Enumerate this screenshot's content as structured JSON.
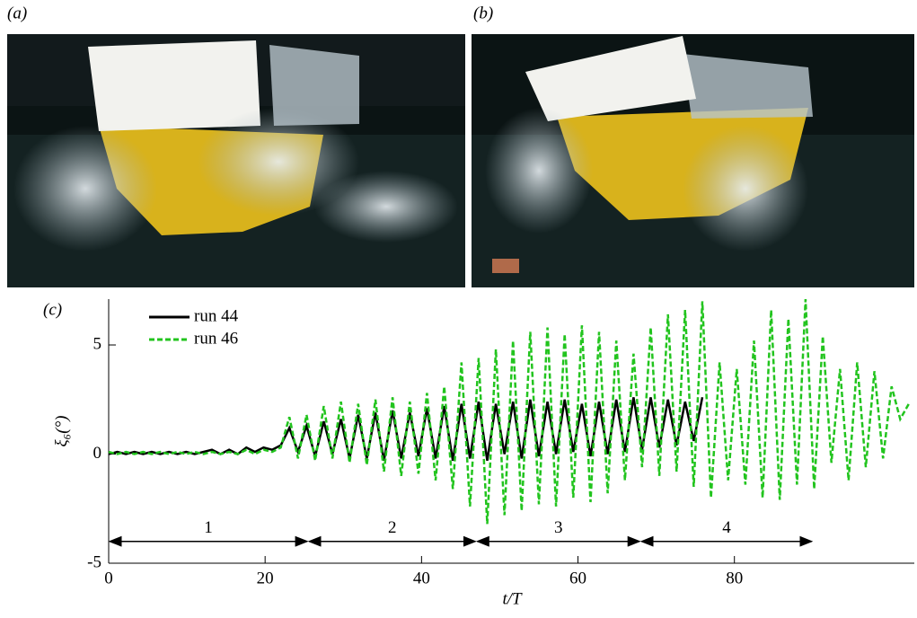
{
  "panels": [
    "(a)",
    "(b)"
  ],
  "chart_data": {
    "type": "line",
    "panel_label": "(c)",
    "x_label": "t/T",
    "y_label": "ξ₆(°)",
    "x": [
      0,
      1.1,
      2.2,
      3.3,
      4.4,
      5.5,
      6.6,
      7.7,
      8.8,
      9.9,
      11,
      12.1,
      13.2,
      14.3,
      15.4,
      16.5,
      17.6,
      18.7,
      19.8,
      20.9,
      22,
      23.1,
      24.2,
      25.3,
      26.4,
      27.5,
      28.6,
      29.7,
      30.8,
      31.9,
      33,
      34.1,
      35.2,
      36.3,
      37.4,
      38.5,
      39.6,
      40.7,
      41.8,
      42.9,
      44,
      45.1,
      46.2,
      47.3,
      48.4,
      49.5,
      50.6,
      51.7,
      52.8,
      53.9,
      55,
      56.1,
      57.2,
      58.3,
      59.4,
      60.5,
      61.6,
      62.7,
      63.8,
      64.9,
      66,
      67.1,
      68.2,
      69.3,
      70.4,
      71.5,
      72.6,
      73.7,
      74.8,
      75.9,
      77,
      78.1,
      79.2,
      80.3,
      81.4,
      82.5,
      83.6,
      84.7,
      85.8,
      86.9,
      88,
      89.1,
      90.2,
      91.3,
      92.4,
      93.5,
      94.6,
      95.7,
      96.8,
      97.9,
      99,
      100.1,
      101.2,
      102.3
    ],
    "series": [
      {
        "name": "run 44",
        "color": "#000000",
        "style": "solid",
        "values": [
          0,
          0.1,
          0,
          0.1,
          0,
          0.1,
          0,
          0.1,
          0,
          0.1,
          0,
          0.1,
          0.2,
          0,
          0.2,
          0,
          0.3,
          0.1,
          0.3,
          0.2,
          0.4,
          1.2,
          0.1,
          1.3,
          -0.1,
          1.5,
          0,
          1.6,
          -0.2,
          1.8,
          -0.2,
          1.9,
          -0.3,
          2,
          -0.2,
          1.9,
          -0.1,
          2.1,
          -0.2,
          2.2,
          -0.3,
          2.3,
          -0.2,
          2.4,
          -0.3,
          2.3,
          0,
          2.4,
          -0.2,
          2.5,
          -0.1,
          2.4,
          0,
          2.5,
          0.1,
          2.3,
          -0.1,
          2.4,
          0,
          2.5,
          0.1,
          2.6,
          0.2,
          2.6,
          0.3,
          2.5,
          0.4,
          2.4,
          0.6,
          2.6,
          null,
          null,
          null,
          null,
          null,
          null,
          null,
          null,
          null,
          null,
          null,
          null,
          null,
          null,
          null,
          null,
          null,
          null,
          null,
          null,
          null,
          null,
          null,
          null
        ]
      },
      {
        "name": "run 46",
        "color": "#22c41e",
        "style": "dashed",
        "values": [
          0.1,
          0,
          0.1,
          0,
          0.1,
          0,
          0.1,
          0,
          0.1,
          0,
          0.1,
          0,
          0.1,
          0,
          0.1,
          0,
          0.2,
          0,
          0.2,
          0.1,
          0.3,
          1.7,
          -0.2,
          1.8,
          -0.3,
          2.2,
          -0.2,
          2.4,
          -0.4,
          2.3,
          -0.5,
          2.5,
          -0.8,
          2.6,
          -1,
          2.4,
          -0.9,
          2.8,
          -1.2,
          3.1,
          -1.6,
          4.2,
          -2.4,
          4.4,
          -3.2,
          4.8,
          -2.8,
          5.2,
          -2.6,
          5.6,
          -2.3,
          5.8,
          -2.4,
          5.5,
          -2,
          5.9,
          -2.2,
          5.6,
          -1.8,
          5.2,
          -1.2,
          4.6,
          -0.6,
          5.8,
          -1,
          6.4,
          -0.8,
          6.6,
          -1.5,
          7,
          -2,
          4.2,
          -1.2,
          3.9,
          -1.4,
          5.2,
          -2,
          6.6,
          -2.1,
          6.2,
          -1.4,
          7.1,
          -1.6,
          5.4,
          -0.4,
          3.9,
          -1.2,
          4.2,
          -0.6,
          3.8,
          -0.2,
          3.1,
          1.6,
          2.3
        ]
      }
    ],
    "annotations": [
      {
        "label": "1",
        "x": [
          0,
          25.5
        ],
        "y": -4
      },
      {
        "label": "2",
        "x": [
          25.5,
          47
        ],
        "y": -4
      },
      {
        "label": "3",
        "x": [
          47,
          68
        ],
        "y": -4
      },
      {
        "label": "4",
        "x": [
          68,
          90
        ],
        "y": -4
      }
    ],
    "xlim": [
      0,
      103
    ],
    "ylim": [
      -5,
      7.1
    ],
    "xticks": [
      0,
      20,
      40,
      60,
      80
    ],
    "yticks": [
      -5,
      0,
      5
    ],
    "legend": "upper left"
  }
}
